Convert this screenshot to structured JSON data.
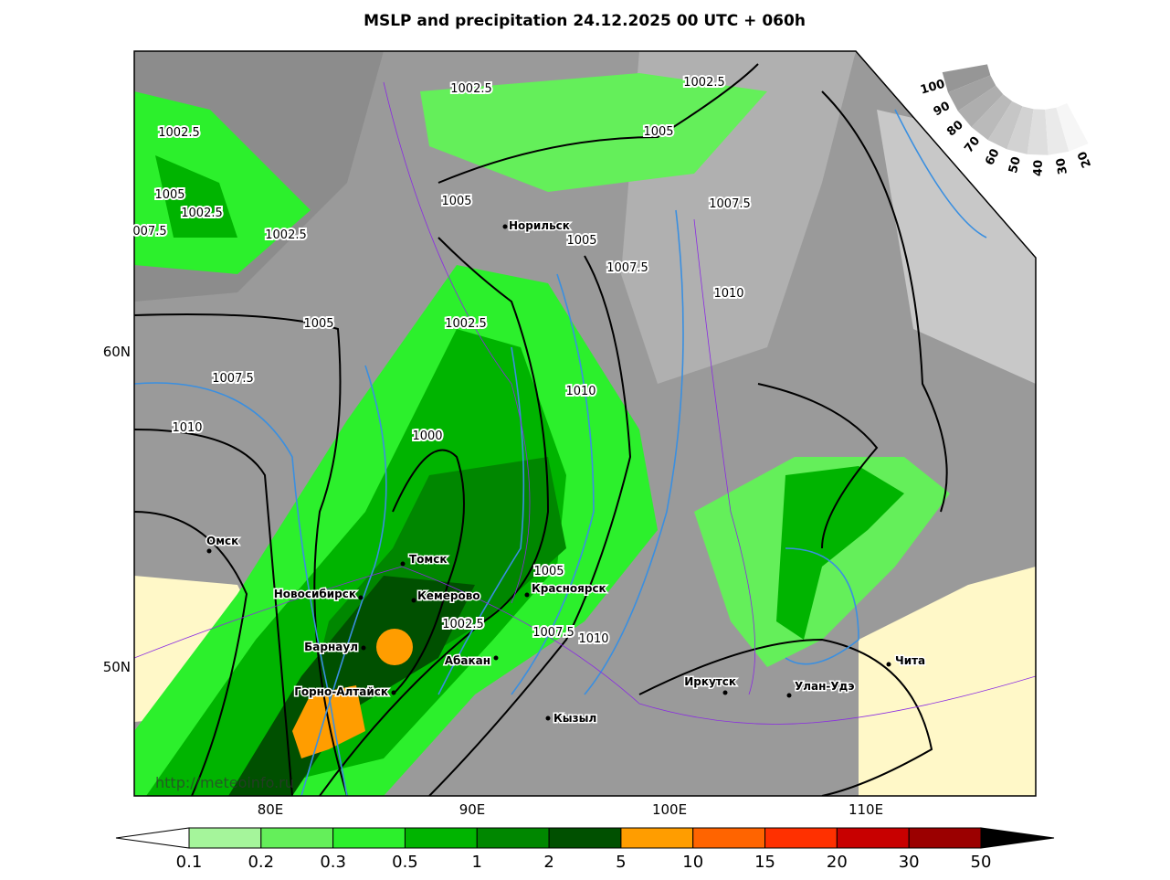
{
  "title": "MSLP and precipitation 24.12.2025 00 UTC + 060h",
  "map": {
    "lon_labels": [
      "80E",
      "90E",
      "100E",
      "110E"
    ],
    "lat_labels": [
      "60N",
      "50N"
    ],
    "cities": [
      "Норильск",
      "Омск",
      "Томск",
      "Новосибирск",
      "Кемерово",
      "Красноярск",
      "Барнаул",
      "Горно-Алтайск",
      "Абакан",
      "Кызыл",
      "Иркутск",
      "Улан-Удэ",
      "Чита"
    ],
    "isobar_labels": [
      "1002.5",
      "1002.5",
      "1002.5",
      "1005",
      "1005",
      "1002.5",
      "007.5",
      "1005",
      "1007.5",
      "1002.5",
      "1005",
      "1007.5",
      "1010",
      "1005",
      "1002.5",
      "1007.5",
      "1010",
      "1010",
      "1000",
      "1005",
      "1002.5",
      "1007.5",
      "1010"
    ],
    "watermark": "http://meteoinfo.ru",
    "cloud_scale": [
      "100",
      "90",
      "80",
      "70",
      "60",
      "50",
      "40",
      "30",
      "20"
    ]
  },
  "colorbar": {
    "labels": [
      "0.1",
      "0.2",
      "0.3",
      "0.5",
      "1",
      "2",
      "5",
      "10",
      "15",
      "20",
      "30",
      "50"
    ],
    "colors": [
      "#a5f59b",
      "#64ef5a",
      "#2cf02c",
      "#00b400",
      "#008700",
      "#005000",
      "#ff9d00",
      "#ff6400",
      "#ff3000",
      "#c80000",
      "#9b0000"
    ]
  }
}
